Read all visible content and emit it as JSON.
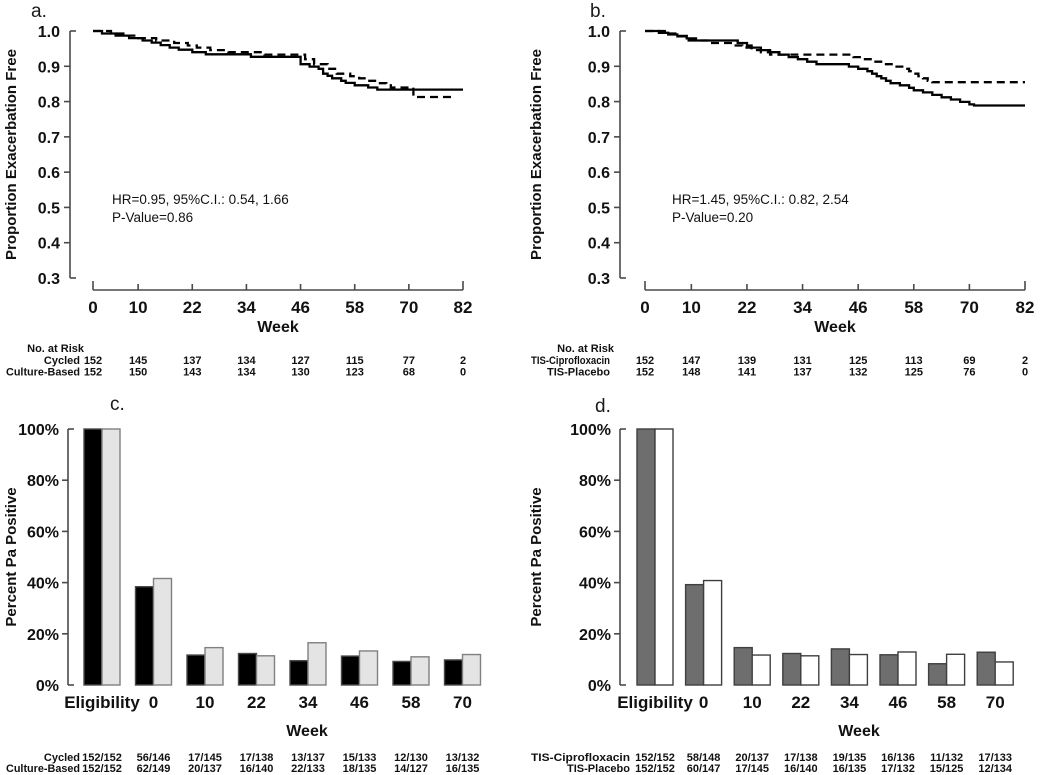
{
  "chart_data": [
    {
      "id": "a",
      "label": "a.",
      "type": "line",
      "chart_kind": "kaplan-meier-step",
      "ylabel": "Proportion Exacerbation Free",
      "xlabel": "Week",
      "ylim": [
        0.3,
        1.0
      ],
      "yticks": [
        "1.0",
        "0.9",
        "0.8",
        "0.7",
        "0.6",
        "0.5",
        "0.4",
        "0.3"
      ],
      "xticks": [
        0,
        10,
        22,
        34,
        46,
        58,
        70,
        82
      ],
      "xmax": 82,
      "annotation": [
        "HR=0.95, 95%C.I.: 0.54, 1.66",
        "P-Value=0.86"
      ],
      "risk_title": "No. at Risk",
      "series": [
        {
          "name": "Cycled",
          "line": "solid",
          "steps": [
            [
              0,
              1.0
            ],
            [
              2,
              0.993
            ],
            [
              5,
              0.987
            ],
            [
              8,
              0.98
            ],
            [
              11,
              0.973
            ],
            [
              13,
              0.967
            ],
            [
              15,
              0.96
            ],
            [
              17,
              0.953
            ],
            [
              19,
              0.947
            ],
            [
              22,
              0.94
            ],
            [
              25,
              0.934
            ],
            [
              35,
              0.927
            ],
            [
              46,
              0.906
            ],
            [
              48,
              0.899
            ],
            [
              50,
              0.893
            ],
            [
              51,
              0.879
            ],
            [
              52,
              0.873
            ],
            [
              53,
              0.866
            ],
            [
              55,
              0.859
            ],
            [
              56,
              0.853
            ],
            [
              58,
              0.846
            ],
            [
              61,
              0.84
            ],
            [
              63,
              0.834
            ],
            [
              82,
              0.834
            ]
          ]
        },
        {
          "name": "Culture-Based",
          "line": "dashed",
          "steps": [
            [
              0,
              1.0
            ],
            [
              4,
              0.993
            ],
            [
              7,
              0.987
            ],
            [
              10,
              0.98
            ],
            [
              14,
              0.973
            ],
            [
              18,
              0.966
            ],
            [
              21,
              0.959
            ],
            [
              23,
              0.953
            ],
            [
              26,
              0.946
            ],
            [
              30,
              0.94
            ],
            [
              38,
              0.933
            ],
            [
              47,
              0.92
            ],
            [
              49,
              0.906
            ],
            [
              52,
              0.893
            ],
            [
              54,
              0.879
            ],
            [
              57,
              0.872
            ],
            [
              59,
              0.866
            ],
            [
              61,
              0.859
            ],
            [
              63,
              0.852
            ],
            [
              65,
              0.846
            ],
            [
              66,
              0.84
            ],
            [
              71,
              0.813
            ],
            [
              80,
              0.813
            ]
          ]
        }
      ],
      "risk_rows": [
        {
          "label": "Cycled",
          "counts": [
            "152",
            "145",
            "137",
            "134",
            "127",
            "115",
            "77",
            "2"
          ]
        },
        {
          "label": "Culture-Based",
          "counts": [
            "152",
            "150",
            "143",
            "134",
            "130",
            "123",
            "68",
            "0"
          ]
        }
      ]
    },
    {
      "id": "b",
      "label": "b.",
      "type": "line",
      "chart_kind": "kaplan-meier-step",
      "ylabel": "Proportion Exacerbation Free",
      "xlabel": "Week",
      "ylim": [
        0.3,
        1.0
      ],
      "yticks": [
        "1.0",
        "0.9",
        "0.8",
        "0.7",
        "0.6",
        "0.5",
        "0.4",
        "0.3"
      ],
      "xticks": [
        0,
        10,
        22,
        34,
        46,
        58,
        70,
        82
      ],
      "xmax": 82,
      "annotation": [
        "HR=1.45, 95%C.I.: 0.82, 2.54",
        "P-Value=0.20"
      ],
      "risk_title": "No. at Risk",
      "series": [
        {
          "name": "TIS-Ciprofloxacin",
          "line": "solid",
          "steps": [
            [
              0,
              1.0
            ],
            [
              3,
              0.995
            ],
            [
              5,
              0.99
            ],
            [
              7,
              0.985
            ],
            [
              9,
              0.979
            ],
            [
              11,
              0.973
            ],
            [
              20,
              0.966
            ],
            [
              22,
              0.959
            ],
            [
              23,
              0.953
            ],
            [
              25,
              0.946
            ],
            [
              27,
              0.94
            ],
            [
              29,
              0.933
            ],
            [
              31,
              0.926
            ],
            [
              33,
              0.92
            ],
            [
              35,
              0.913
            ],
            [
              37,
              0.906
            ],
            [
              44,
              0.899
            ],
            [
              46,
              0.893
            ],
            [
              48,
              0.886
            ],
            [
              49,
              0.879
            ],
            [
              50,
              0.872
            ],
            [
              51,
              0.866
            ],
            [
              52,
              0.859
            ],
            [
              53,
              0.852
            ],
            [
              55,
              0.846
            ],
            [
              57,
              0.839
            ],
            [
              58,
              0.832
            ],
            [
              60,
              0.826
            ],
            [
              62,
              0.819
            ],
            [
              64,
              0.812
            ],
            [
              66,
              0.806
            ],
            [
              68,
              0.799
            ],
            [
              70,
              0.792
            ],
            [
              71,
              0.789
            ],
            [
              82,
              0.789
            ]
          ]
        },
        {
          "name": "TIS-Placebo",
          "line": "dashed",
          "steps": [
            [
              0,
              1.0
            ],
            [
              5,
              0.993
            ],
            [
              7,
              0.986
            ],
            [
              9,
              0.973
            ],
            [
              14,
              0.966
            ],
            [
              19,
              0.959
            ],
            [
              21,
              0.953
            ],
            [
              23,
              0.946
            ],
            [
              25,
              0.94
            ],
            [
              27,
              0.933
            ],
            [
              45,
              0.926
            ],
            [
              47,
              0.92
            ],
            [
              49,
              0.913
            ],
            [
              52,
              0.906
            ],
            [
              54,
              0.899
            ],
            [
              56,
              0.893
            ],
            [
              57,
              0.886
            ],
            [
              58,
              0.879
            ],
            [
              59,
              0.872
            ],
            [
              60,
              0.866
            ],
            [
              61,
              0.859
            ],
            [
              62,
              0.855
            ],
            [
              82,
              0.855
            ]
          ]
        }
      ],
      "risk_rows": [
        {
          "label": "TIS-Ciprofloxacin",
          "counts": [
            "152",
            "147",
            "139",
            "131",
            "125",
            "113",
            "69",
            "2"
          ]
        },
        {
          "label": "TIS-Placebo",
          "counts": [
            "152",
            "148",
            "141",
            "137",
            "132",
            "125",
            "76",
            "0"
          ]
        }
      ]
    },
    {
      "id": "c",
      "label": "c.",
      "type": "bar",
      "ylabel": "Percent Pa Positive",
      "xlabel": "Week",
      "ylim": [
        0,
        100
      ],
      "yticks": [
        "0%",
        "20%",
        "40%",
        "60%",
        "80%",
        "100%"
      ],
      "categories": [
        "Eligibility",
        "0",
        "10",
        "22",
        "34",
        "46",
        "58",
        "70"
      ],
      "series": [
        {
          "name": "Cycled",
          "fill": "#000000",
          "stroke": "#4a4a4a",
          "values": [
            100,
            38.4,
            11.7,
            12.3,
            9.5,
            11.3,
            9.2,
            9.8
          ],
          "fractions": [
            "152/152",
            "56/146",
            "17/145",
            "17/138",
            "13/137",
            "15/133",
            "12/130",
            "13/132"
          ]
        },
        {
          "name": "Culture-Based",
          "fill": "#e4e4e4",
          "stroke": "#808080",
          "values": [
            100,
            41.6,
            14.6,
            11.4,
            16.5,
            13.3,
            11.0,
            11.9
          ],
          "fractions": [
            "152/152",
            "62/149",
            "20/137",
            "16/140",
            "22/133",
            "18/135",
            "14/127",
            "16/135"
          ]
        }
      ]
    },
    {
      "id": "d",
      "label": "d.",
      "type": "bar",
      "ylabel": "Percent Pa Positive",
      "xlabel": "Week",
      "ylim": [
        0,
        100
      ],
      "yticks": [
        "0%",
        "20%",
        "40%",
        "60%",
        "80%",
        "100%"
      ],
      "categories": [
        "Eligibility",
        "0",
        "10",
        "22",
        "34",
        "46",
        "58",
        "70"
      ],
      "series": [
        {
          "name": "TIS-Ciprofloxacin",
          "fill": "#6e6e6e",
          "stroke": "#3f3f3f",
          "values": [
            100,
            39.2,
            14.6,
            12.3,
            14.1,
            11.8,
            8.3,
            12.8
          ],
          "fractions": [
            "152/152",
            "58/148",
            "20/137",
            "17/138",
            "19/135",
            "16/136",
            "11/132",
            "17/133"
          ]
        },
        {
          "name": "TIS-Placebo",
          "fill": "#ffffff",
          "stroke": "#3f3f3f",
          "values": [
            100,
            40.8,
            11.7,
            11.4,
            11.9,
            12.9,
            12.0,
            9.0
          ],
          "fractions": [
            "152/152",
            "60/147",
            "17/145",
            "16/140",
            "16/135",
            "17/132",
            "15/125",
            "12/134"
          ]
        }
      ]
    }
  ]
}
